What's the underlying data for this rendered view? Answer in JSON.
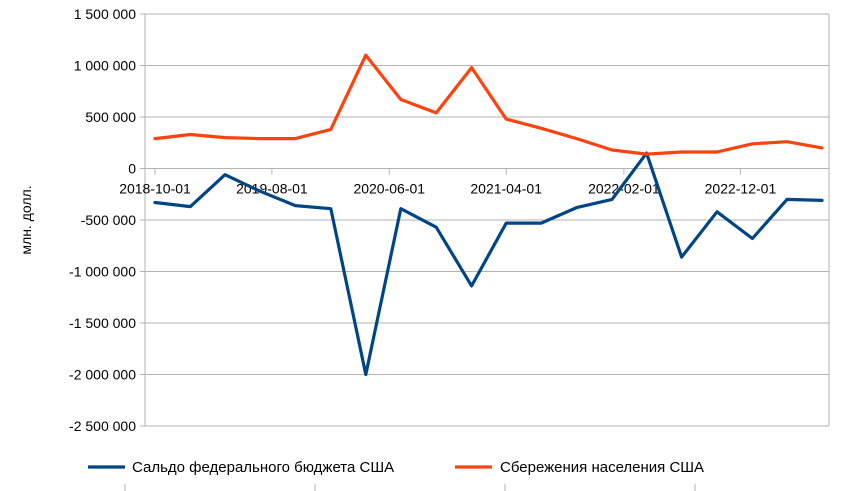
{
  "chart_data": {
    "type": "line",
    "title": "",
    "xlabel": "",
    "ylabel": "млн. долл.",
    "ylim": [
      -2500000,
      1500000
    ],
    "y_ticks": [
      1500000,
      1000000,
      500000,
      0,
      -500000,
      -1000000,
      -1500000,
      -2000000,
      -2500000
    ],
    "y_tick_labels": [
      "1 500 000",
      "1 000 000",
      "500 000",
      "0",
      "-500 000",
      "-1 000 000",
      "-1 500 000",
      "-2 000 000",
      "-2 500 000"
    ],
    "x_tick_labels": [
      "2018-10-01",
      "2019-08-01",
      "2020-06-01",
      "2021-04-01",
      "2022-02-01",
      "2022-12-01"
    ],
    "x": [
      "2018-10-01",
      "2019-01-01",
      "2019-04-01",
      "2019-07-01",
      "2019-10-01",
      "2020-01-01",
      "2020-04-01",
      "2020-07-01",
      "2020-10-01",
      "2021-01-01",
      "2021-04-01",
      "2021-07-01",
      "2021-10-01",
      "2022-01-01",
      "2022-04-01",
      "2022-07-01",
      "2022-10-01",
      "2023-01-01",
      "2023-04-01",
      "2023-07-01"
    ],
    "grid": true,
    "legend_position": "bottom",
    "series": [
      {
        "name": "Сальдо федерального бюджета США",
        "color": "#004586",
        "values": [
          -330000,
          -370000,
          -60000,
          -220000,
          -360000,
          -390000,
          -2000000,
          -390000,
          -570000,
          -1140000,
          -530000,
          -530000,
          -380000,
          -300000,
          150000,
          -860000,
          -420000,
          -680000,
          -300000,
          -310000
        ]
      },
      {
        "name": "Сбережения населения США",
        "color": "#ff420e",
        "values": [
          290000,
          330000,
          300000,
          290000,
          290000,
          380000,
          1100000,
          670000,
          540000,
          980000,
          480000,
          390000,
          290000,
          180000,
          140000,
          160000,
          160000,
          240000,
          260000,
          200000
        ]
      }
    ]
  }
}
